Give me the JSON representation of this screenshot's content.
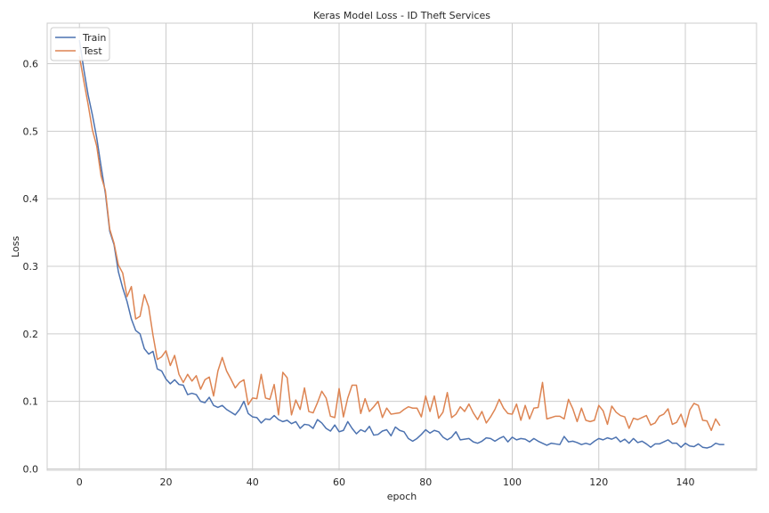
{
  "chart_data": {
    "type": "line",
    "title": "Keras Model Loss - ID Theft Services",
    "xlabel": "epoch",
    "ylabel": "Loss",
    "xlim": [
      -7.45,
      156.45
    ],
    "ylim": [
      -0.002,
      0.66
    ],
    "xticks": [
      0,
      20,
      40,
      60,
      80,
      100,
      120,
      140
    ],
    "xtick_labels": [
      "0",
      "20",
      "40",
      "60",
      "80",
      "100",
      "120",
      "140"
    ],
    "yticks": [
      0.0,
      0.1,
      0.2,
      0.3,
      0.4,
      0.5,
      0.6
    ],
    "ytick_labels": [
      "0.0",
      "0.1",
      "0.2",
      "0.3",
      "0.4",
      "0.5",
      "0.6"
    ],
    "grid": true,
    "legend_position": "top-left",
    "series": [
      {
        "name": "Train",
        "color": "#4c72b0",
        "values": [
          0.635,
          0.592,
          0.554,
          0.524,
          0.49,
          0.448,
          0.408,
          0.352,
          0.332,
          0.292,
          0.268,
          0.248,
          0.222,
          0.205,
          0.2,
          0.178,
          0.17,
          0.174,
          0.148,
          0.145,
          0.133,
          0.126,
          0.132,
          0.125,
          0.124,
          0.11,
          0.112,
          0.11,
          0.1,
          0.098,
          0.106,
          0.094,
          0.091,
          0.094,
          0.088,
          0.084,
          0.08,
          0.088,
          0.1,
          0.082,
          0.077,
          0.076,
          0.068,
          0.074,
          0.073,
          0.079,
          0.073,
          0.07,
          0.072,
          0.067,
          0.07,
          0.06,
          0.066,
          0.065,
          0.06,
          0.073,
          0.068,
          0.06,
          0.056,
          0.065,
          0.055,
          0.057,
          0.07,
          0.06,
          0.052,
          0.058,
          0.055,
          0.063,
          0.05,
          0.051,
          0.056,
          0.058,
          0.049,
          0.062,
          0.057,
          0.055,
          0.045,
          0.041,
          0.045,
          0.051,
          0.058,
          0.053,
          0.057,
          0.055,
          0.047,
          0.043,
          0.047,
          0.055,
          0.043,
          0.044,
          0.045,
          0.04,
          0.038,
          0.041,
          0.046,
          0.045,
          0.041,
          0.045,
          0.048,
          0.04,
          0.047,
          0.043,
          0.045,
          0.044,
          0.04,
          0.045,
          0.041,
          0.038,
          0.035,
          0.038,
          0.037,
          0.036,
          0.048,
          0.04,
          0.041,
          0.039,
          0.036,
          0.038,
          0.036,
          0.041,
          0.045,
          0.043,
          0.046,
          0.044,
          0.047,
          0.04,
          0.044,
          0.038,
          0.045,
          0.039,
          0.041,
          0.037,
          0.032,
          0.037,
          0.037,
          0.04,
          0.043,
          0.038,
          0.038,
          0.032,
          0.038,
          0.034,
          0.033,
          0.037,
          0.032,
          0.031,
          0.033,
          0.038,
          0.036,
          0.036
        ]
      },
      {
        "name": "Test",
        "color": "#dd8452",
        "values": [
          0.611,
          0.575,
          0.54,
          0.502,
          0.478,
          0.434,
          0.412,
          0.355,
          0.334,
          0.302,
          0.29,
          0.255,
          0.27,
          0.222,
          0.226,
          0.258,
          0.24,
          0.198,
          0.162,
          0.166,
          0.175,
          0.153,
          0.168,
          0.14,
          0.128,
          0.14,
          0.13,
          0.138,
          0.118,
          0.132,
          0.136,
          0.108,
          0.145,
          0.165,
          0.145,
          0.133,
          0.12,
          0.128,
          0.132,
          0.095,
          0.105,
          0.104,
          0.14,
          0.105,
          0.103,
          0.125,
          0.08,
          0.143,
          0.135,
          0.08,
          0.102,
          0.088,
          0.12,
          0.085,
          0.083,
          0.098,
          0.115,
          0.105,
          0.078,
          0.076,
          0.119,
          0.077,
          0.105,
          0.124,
          0.124,
          0.082,
          0.104,
          0.085,
          0.092,
          0.1,
          0.076,
          0.09,
          0.081,
          0.082,
          0.083,
          0.088,
          0.092,
          0.09,
          0.09,
          0.077,
          0.108,
          0.085,
          0.108,
          0.075,
          0.084,
          0.113,
          0.076,
          0.081,
          0.092,
          0.085,
          0.096,
          0.083,
          0.073,
          0.085,
          0.068,
          0.077,
          0.088,
          0.103,
          0.09,
          0.082,
          0.081,
          0.096,
          0.072,
          0.094,
          0.074,
          0.09,
          0.091,
          0.128,
          0.074,
          0.076,
          0.078,
          0.078,
          0.074,
          0.103,
          0.089,
          0.07,
          0.09,
          0.072,
          0.07,
          0.072,
          0.094,
          0.086,
          0.066,
          0.093,
          0.084,
          0.079,
          0.077,
          0.06,
          0.075,
          0.073,
          0.076,
          0.079,
          0.065,
          0.068,
          0.078,
          0.081,
          0.089,
          0.066,
          0.069,
          0.081,
          0.062,
          0.087,
          0.097,
          0.094,
          0.072,
          0.071,
          0.057,
          0.074,
          0.064
        ]
      }
    ]
  }
}
